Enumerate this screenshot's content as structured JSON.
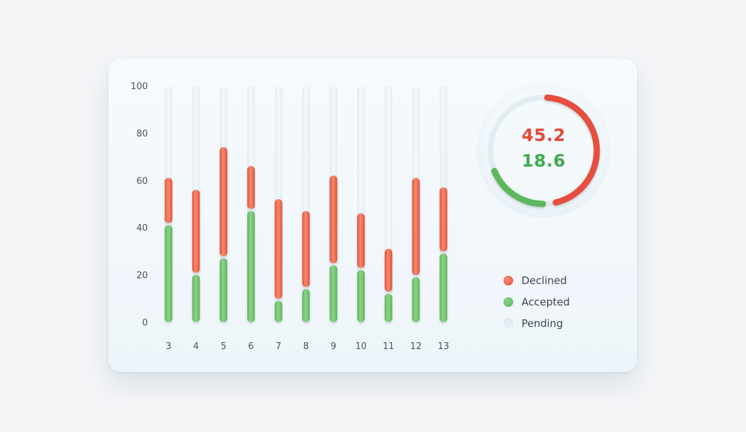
{
  "colors": {
    "declined": "#e6503f",
    "declined_light": "#f58c6a",
    "accepted": "#5cb85a",
    "accepted_light": "#8fd18a",
    "pending": "#e6eef4",
    "value_red": "#e34a3c",
    "value_green": "#3faa4e"
  },
  "donut": {
    "declined_value": "45.2",
    "accepted_value": "18.6"
  },
  "legend": {
    "items": [
      {
        "label": "Declined",
        "color": "#e6503f"
      },
      {
        "label": "Accepted",
        "color": "#5cb85a"
      },
      {
        "label": "Pending",
        "color": "#e8eff4"
      }
    ]
  },
  "chart_data": [
    {
      "type": "bar",
      "stacked": true,
      "categories": [
        "3",
        "4",
        "5",
        "6",
        "7",
        "8",
        "9",
        "10",
        "11",
        "12",
        "13"
      ],
      "series": [
        {
          "name": "Accepted",
          "values": [
            41,
            20,
            27,
            47,
            9,
            14,
            24,
            22,
            12,
            19,
            29
          ]
        },
        {
          "name": "Declined",
          "values": [
            20,
            36,
            47,
            19,
            43,
            33,
            38,
            24,
            19,
            42,
            28
          ]
        },
        {
          "name": "Pending",
          "values": [
            39,
            44,
            26,
            34,
            48,
            53,
            38,
            54,
            69,
            39,
            43
          ]
        }
      ],
      "ylim": [
        0,
        100
      ],
      "yticks": [
        0,
        20,
        40,
        60,
        80,
        100
      ],
      "legend": "right"
    },
    {
      "type": "pie",
      "donut": true,
      "labels": [
        "Declined",
        "Accepted"
      ],
      "values": [
        45.2,
        18.6
      ]
    }
  ]
}
